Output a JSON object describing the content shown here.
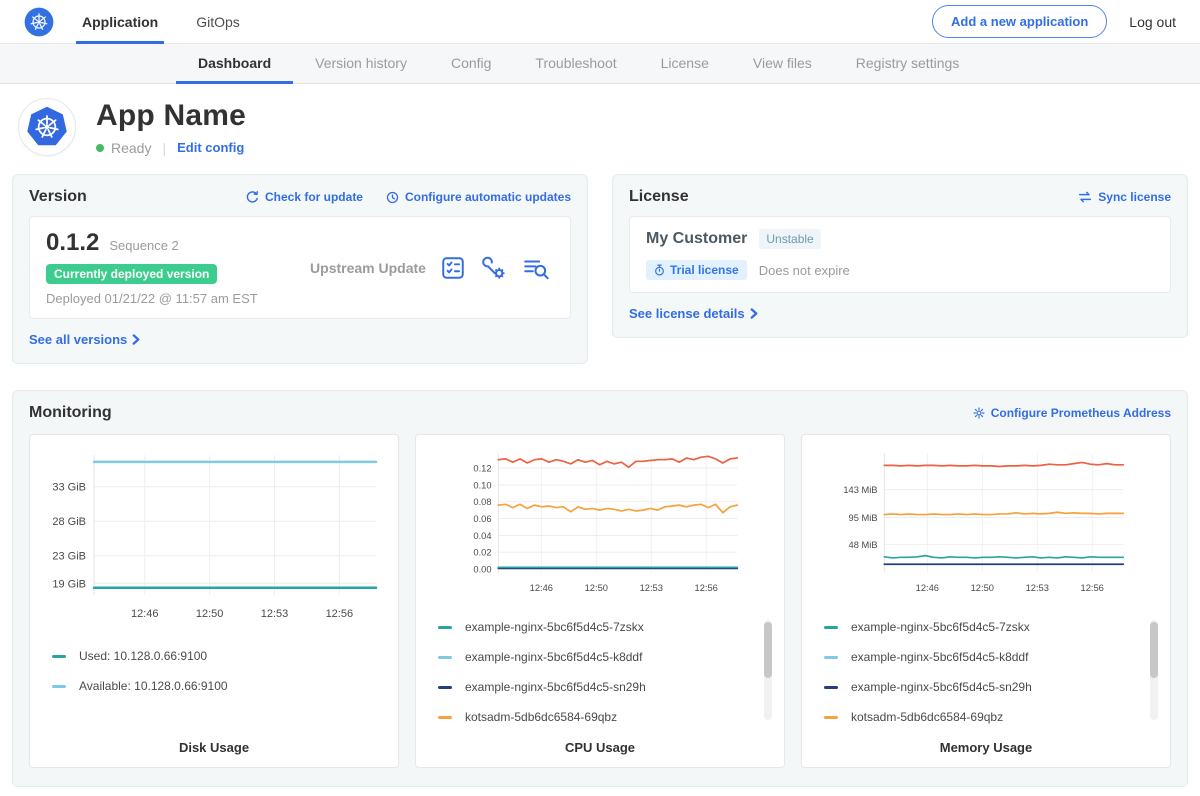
{
  "colors": {
    "accent_blue": "#326de6",
    "green_badge": "#3ccd8e",
    "ready_green": "#44bb66",
    "teal": "#29a3a3",
    "light_blue": "#7fc9e4",
    "navy": "#253e7d",
    "orange": "#f7a03c",
    "red_orange": "#eb6142"
  },
  "topnav": {
    "logo": "kubernetes-logo",
    "tabs": [
      {
        "label": "Application",
        "active": true
      },
      {
        "label": "GitOps",
        "active": false
      }
    ],
    "add_button": "Add a new application",
    "logout": "Log out"
  },
  "subnav": {
    "active": "Dashboard",
    "tabs": [
      "Dashboard",
      "Version history",
      "Config",
      "Troubleshoot",
      "License",
      "View files",
      "Registry settings"
    ]
  },
  "app_header": {
    "title": "App Name",
    "status": "Ready",
    "edit_config": "Edit config"
  },
  "version_card": {
    "title": "Version",
    "check_for_update": "Check for update",
    "configure_automatic_updates": "Configure automatic updates",
    "number": "0.1.2",
    "sequence": "Sequence 2",
    "deployed_badge": "Currently deployed version",
    "deployed_at": "Deployed 01/21/22 @ 11:57 am EST",
    "upstream": "Upstream Update",
    "see_all": "See all versions"
  },
  "license_card": {
    "title": "License",
    "sync": "Sync license",
    "customer": "My Customer",
    "channel_badge": "Unstable",
    "type_badge": "Trial license",
    "expiry": "Does not expire",
    "details": "See license details"
  },
  "monitoring": {
    "title": "Monitoring",
    "configure_link": "Configure Prometheus Address",
    "charts": [
      {
        "type": "line",
        "title": "Disk Usage",
        "y_domain": [
          17.3,
          37.6
        ],
        "y_ticks": [
          {
            "value": 19,
            "label": "19 GiB"
          },
          {
            "value": 23,
            "label": "23 GiB"
          },
          {
            "value": 28,
            "label": "28 GiB"
          },
          {
            "value": 33,
            "label": "33 GiB"
          }
        ],
        "x_ticks": [
          "12:46",
          "12:50",
          "12:53",
          "12:56"
        ],
        "stroke_width": 2.5,
        "scrollbar": false,
        "legend": [
          {
            "label": "Used: 10.128.0.66:9100",
            "color": "#29a3a3"
          },
          {
            "label": "Available: 10.128.0.66:9100",
            "color": "#7fc9e4"
          }
        ],
        "series": [
          {
            "color": "#7fc9e4",
            "values": [
              36.6
            ]
          },
          {
            "color": "#29a3a3",
            "values": [
              18.35
            ]
          }
        ]
      },
      {
        "type": "line",
        "title": "CPU Usage",
        "y_domain": [
          -0.004,
          0.137
        ],
        "y_ticks": [
          {
            "value": 0.0,
            "label": "0.00"
          },
          {
            "value": 0.02,
            "label": "0.02"
          },
          {
            "value": 0.04,
            "label": "0.04"
          },
          {
            "value": 0.06,
            "label": "0.06"
          },
          {
            "value": 0.08,
            "label": "0.08"
          },
          {
            "value": 0.1,
            "label": "0.10"
          },
          {
            "value": 0.12,
            "label": "0.12"
          }
        ],
        "x_ticks": [
          "12:46",
          "12:50",
          "12:53",
          "12:56"
        ],
        "stroke_width": 2,
        "scrollbar": true,
        "legend": [
          {
            "label": "example-nginx-5bc6f5d4c5-7zskx",
            "color": "#29a3a3"
          },
          {
            "label": "example-nginx-5bc6f5d4c5-k8ddf",
            "color": "#7fc9e4"
          },
          {
            "label": "example-nginx-5bc6f5d4c5-sn29h",
            "color": "#253e7d"
          },
          {
            "label": "kotsadm-5db6dc6584-69qbz",
            "color": "#f7a03c"
          }
        ],
        "series": [
          {
            "color": "#7fc9e4",
            "values": [
              0.0015
            ]
          },
          {
            "color": "#253e7d",
            "values": [
              0.0008
            ]
          },
          {
            "color": "#29a3a3",
            "values": [
              0.002
            ]
          },
          {
            "color": "#f7a03c",
            "values": [
              0.076,
              0.077,
              0.073,
              0.077,
              0.072,
              0.076,
              0.074,
              0.075,
              0.073,
              0.074,
              0.068,
              0.074,
              0.071,
              0.072,
              0.07,
              0.072,
              0.071,
              0.069,
              0.071,
              0.069,
              0.07,
              0.072,
              0.07,
              0.074,
              0.075,
              0.076,
              0.074,
              0.076,
              0.077,
              0.073,
              0.077,
              0.067,
              0.074,
              0.076
            ]
          },
          {
            "color": "#eb6142",
            "values": [
              0.13,
              0.131,
              0.127,
              0.131,
              0.126,
              0.13,
              0.131,
              0.127,
              0.13,
              0.128,
              0.125,
              0.13,
              0.127,
              0.129,
              0.124,
              0.128,
              0.125,
              0.127,
              0.121,
              0.128,
              0.128,
              0.129,
              0.13,
              0.13,
              0.131,
              0.127,
              0.132,
              0.13,
              0.133,
              0.134,
              0.131,
              0.126,
              0.131,
              0.132
            ]
          }
        ]
      },
      {
        "type": "line",
        "title": "Memory Usage",
        "y_domain": [
          0,
          205
        ],
        "y_ticks": [
          {
            "value": 48,
            "label": "48 MiB"
          },
          {
            "value": 95,
            "label": "95 MiB"
          },
          {
            "value": 143,
            "label": "143 MiB"
          }
        ],
        "x_ticks": [
          "12:46",
          "12:50",
          "12:53",
          "12:56"
        ],
        "stroke_width": 2,
        "scrollbar": true,
        "legend": [
          {
            "label": "example-nginx-5bc6f5d4c5-7zskx",
            "color": "#29a3a3"
          },
          {
            "label": "example-nginx-5bc6f5d4c5-k8ddf",
            "color": "#7fc9e4"
          },
          {
            "label": "example-nginx-5bc6f5d4c5-sn29h",
            "color": "#253e7d"
          },
          {
            "label": "kotsadm-5db6dc6584-69qbz",
            "color": "#f7a03c"
          }
        ],
        "series": [
          {
            "color": "#253e7d",
            "values": [
              14
            ]
          },
          {
            "color": "#29a3a3",
            "values": [
              27,
              25,
              26,
              26,
              27,
              29,
              26,
              25,
              27,
              26,
              26,
              25,
              26,
              26,
              27,
              26,
              25,
              26,
              27,
              25,
              26,
              25,
              27,
              26,
              25,
              27,
              26,
              26,
              26,
              26
            ]
          },
          {
            "color": "#f7a03c",
            "values": [
              100,
              101,
              100,
              101,
              100,
              100,
              101,
              100,
              100,
              101,
              100,
              101,
              100,
              100,
              101,
              101,
              103,
              101,
              102,
              101,
              102,
              104,
              102,
              103,
              102,
              102,
              101,
              102,
              102,
              102
            ]
          },
          {
            "color": "#eb6142",
            "values": [
              185,
              185,
              184,
              185,
              184,
              185,
              185,
              184,
              185,
              184,
              184,
              185,
              184,
              184,
              183,
              184,
              184,
              185,
              184,
              185,
              187,
              186,
              186,
              188,
              190,
              187,
              186,
              188,
              186,
              186
            ]
          }
        ]
      }
    ]
  }
}
